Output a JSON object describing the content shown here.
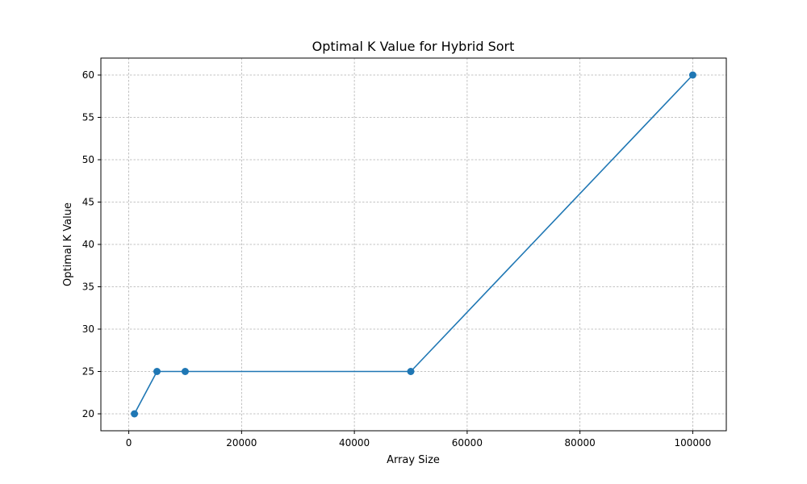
{
  "chart_data": {
    "type": "line",
    "title": "Optimal K Value for Hybrid Sort",
    "xlabel": "Array Size",
    "ylabel": "Optimal K Value",
    "x": [
      1000,
      5000,
      10000,
      50000,
      100000
    ],
    "y": [
      20,
      25,
      25,
      25,
      60
    ],
    "xlim": [
      -4950,
      105950
    ],
    "ylim": [
      18,
      62
    ],
    "xticks": [
      0,
      20000,
      40000,
      60000,
      80000,
      100000
    ],
    "yticks": [
      20,
      25,
      30,
      35,
      40,
      45,
      50,
      55,
      60
    ],
    "grid": true,
    "line_color": "#1f77b4",
    "marker": "circle"
  }
}
